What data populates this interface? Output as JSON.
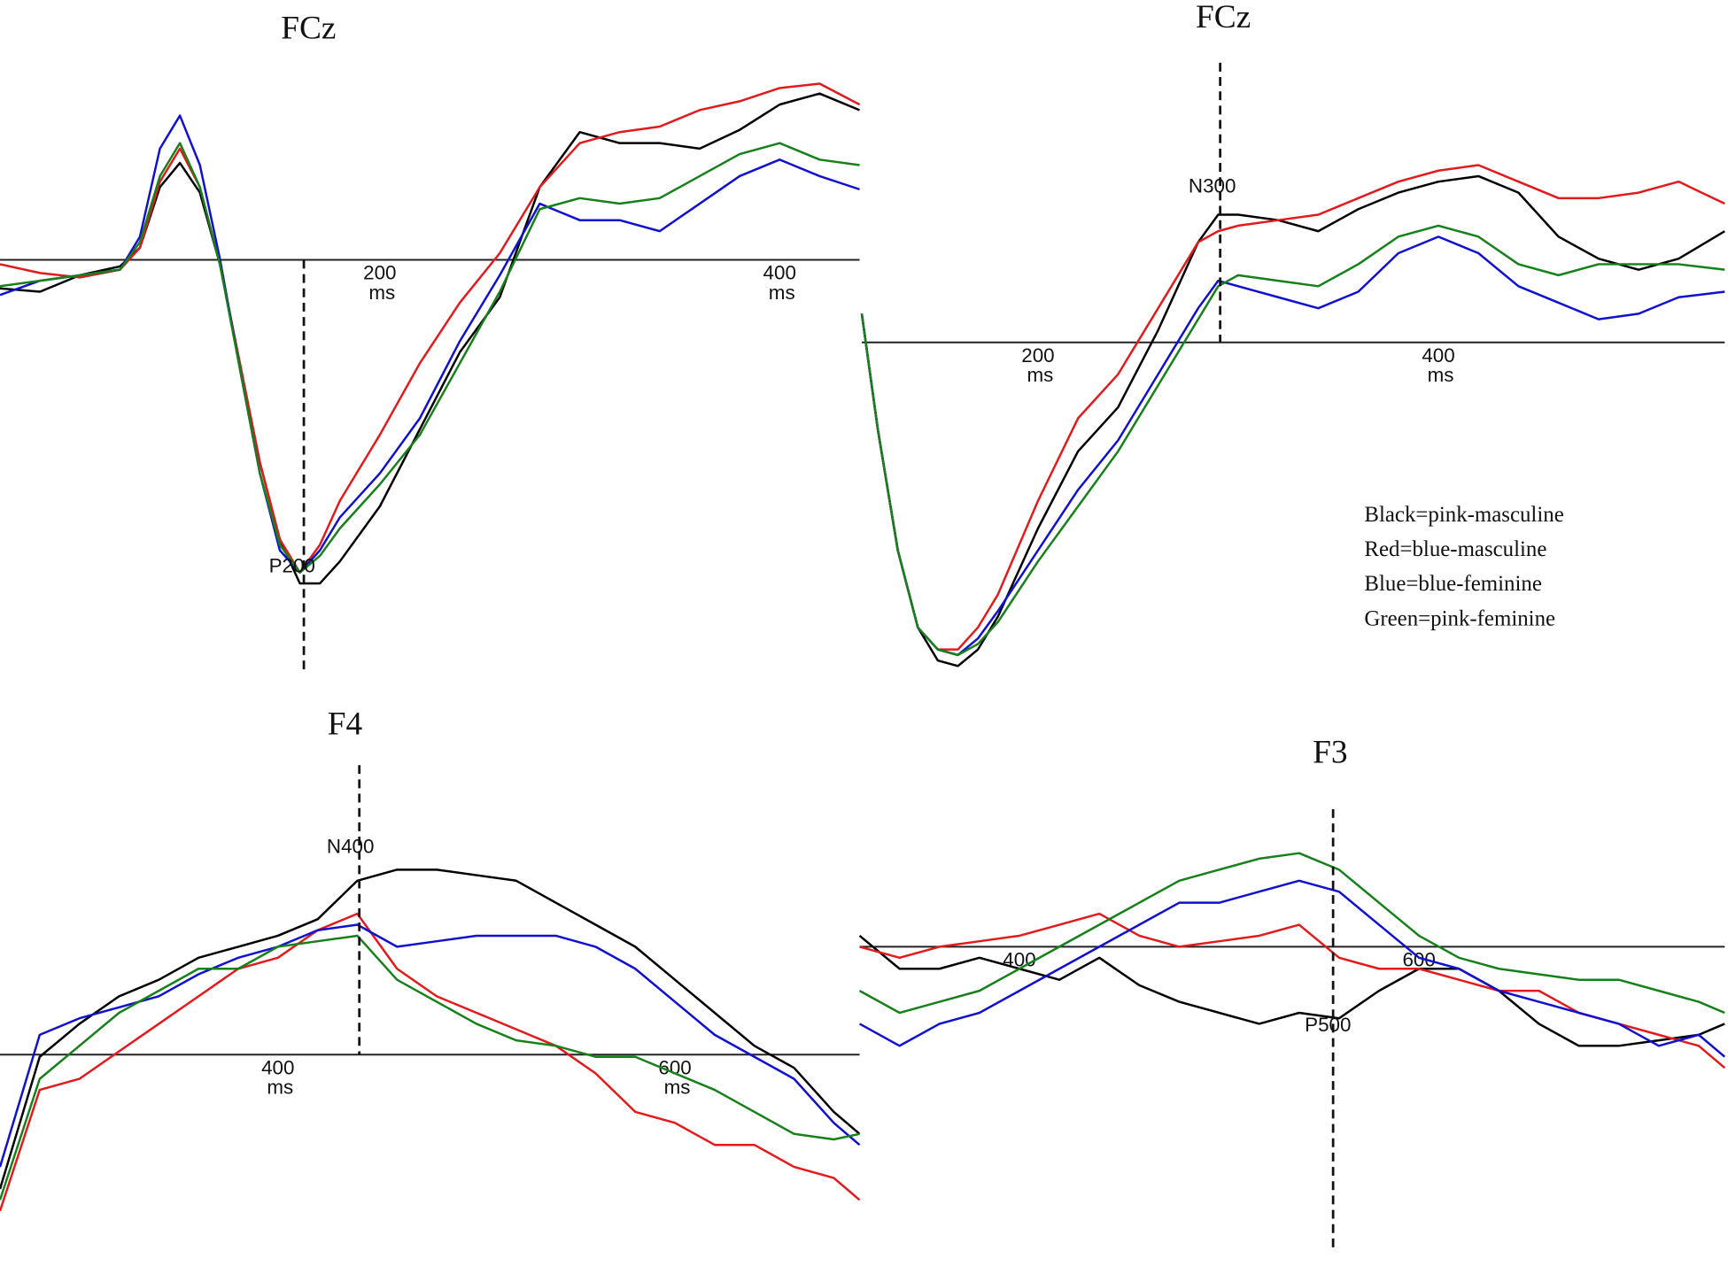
{
  "chart_data": [
    {
      "type": "line",
      "title": "FCz",
      "x_unit": "ms",
      "x": [
        10,
        30,
        50,
        70,
        80,
        90,
        100,
        110,
        120,
        130,
        140,
        150,
        160,
        170,
        180,
        200,
        220,
        240,
        260,
        280,
        300,
        320,
        340,
        360,
        380,
        400,
        420,
        440
      ],
      "xlim": [
        10,
        440
      ],
      "xticks": [
        200,
        400
      ],
      "ylim": [
        -7.5,
        3.5
      ],
      "marker": {
        "x": 162,
        "label": "P200"
      },
      "series": [
        {
          "color": "#000000",
          "values": [
            -0.52,
            -0.58,
            -0.28,
            -0.12,
            0.22,
            1.32,
            1.76,
            1.22,
            -0.08,
            -1.88,
            -3.68,
            -5.08,
            -5.88,
            -5.88,
            -5.48,
            -4.48,
            -3.08,
            -1.68,
            -0.68,
            1.32,
            2.32,
            2.12,
            2.12,
            2.02,
            2.36,
            2.82,
            3.02,
            2.72
          ]
        },
        {
          "color": "#e31a1c",
          "values": [
            -0.08,
            -0.24,
            -0.32,
            -0.18,
            0.22,
            1.42,
            2.02,
            1.32,
            -0.08,
            -1.88,
            -3.68,
            -5.08,
            -5.68,
            -5.18,
            -4.38,
            -3.18,
            -1.88,
            -0.78,
            0.12,
            1.32,
            2.12,
            2.32,
            2.42,
            2.72,
            2.88,
            3.12,
            3.2,
            2.82
          ]
        },
        {
          "color": "#1010d0",
          "values": [
            -0.64,
            -0.38,
            -0.28,
            -0.18,
            0.42,
            2.02,
            2.62,
            1.72,
            0.02,
            -1.98,
            -3.88,
            -5.28,
            -5.68,
            -5.28,
            -4.68,
            -3.88,
            -2.88,
            -1.48,
            -0.28,
            1.02,
            0.72,
            0.72,
            0.52,
            1.02,
            1.52,
            1.82,
            1.52,
            1.28
          ]
        },
        {
          "color": "#16801a",
          "values": [
            -0.48,
            -0.38,
            -0.28,
            -0.18,
            0.32,
            1.52,
            2.12,
            1.32,
            -0.08,
            -1.98,
            -3.88,
            -5.18,
            -5.68,
            -5.38,
            -4.88,
            -4.08,
            -3.18,
            -1.88,
            -0.58,
            0.92,
            1.12,
            1.02,
            1.12,
            1.52,
            1.92,
            2.12,
            1.82,
            1.72
          ]
        }
      ]
    },
    {
      "type": "line",
      "title": "FCz",
      "x_unit": "ms",
      "x": [
        112,
        120,
        130,
        140,
        150,
        160,
        170,
        180,
        200,
        220,
        240,
        260,
        280,
        290,
        300,
        320,
        340,
        360,
        380,
        400,
        420,
        440,
        460,
        480,
        500,
        520,
        543
      ],
      "xlim": [
        112,
        543
      ],
      "xticks": [
        200,
        400
      ],
      "ylim": [
        -6.1,
        5.0
      ],
      "marker": {
        "x": 291,
        "label": "N300"
      },
      "series": [
        {
          "name": "Black=pink-masculine",
          "color": "#000000",
          "values": [
            0.52,
            -1.58,
            -3.78,
            -5.18,
            -5.78,
            -5.88,
            -5.58,
            -4.98,
            -3.38,
            -1.98,
            -1.18,
            0.22,
            1.82,
            2.32,
            2.32,
            2.22,
            2.02,
            2.42,
            2.72,
            2.92,
            3.02,
            2.72,
            1.92,
            1.52,
            1.32,
            1.52,
            2.02
          ]
        },
        {
          "name": "Red=blue-masculine",
          "color": "#e31a1c",
          "values": [
            0.52,
            -1.58,
            -3.78,
            -5.18,
            -5.58,
            -5.58,
            -5.18,
            -4.58,
            -2.88,
            -1.38,
            -0.58,
            0.62,
            1.82,
            2.02,
            2.12,
            2.22,
            2.32,
            2.62,
            2.92,
            3.12,
            3.22,
            2.92,
            2.62,
            2.62,
            2.72,
            2.92,
            2.52
          ]
        },
        {
          "name": "Blue=blue-feminine",
          "color": "#1010d0",
          "values": [
            0.52,
            -1.58,
            -3.78,
            -5.18,
            -5.58,
            -5.68,
            -5.38,
            -4.88,
            -3.78,
            -2.68,
            -1.78,
            -0.58,
            0.62,
            1.12,
            1.02,
            0.82,
            0.62,
            0.92,
            1.62,
            1.92,
            1.62,
            1.02,
            0.72,
            0.42,
            0.52,
            0.82,
            0.92
          ]
        },
        {
          "name": "Green=pink-feminine",
          "color": "#16801a",
          "values": [
            0.52,
            -1.58,
            -3.78,
            -5.18,
            -5.58,
            -5.68,
            -5.48,
            -5.08,
            -3.98,
            -2.98,
            -1.98,
            -0.78,
            0.42,
            1.02,
            1.22,
            1.12,
            1.02,
            1.42,
            1.92,
            2.12,
            1.92,
            1.42,
            1.22,
            1.42,
            1.42,
            1.42,
            1.32
          ]
        }
      ]
    },
    {
      "type": "line",
      "title": "F4",
      "x_unit": "ms",
      "x": [
        260,
        280,
        300,
        320,
        340,
        360,
        380,
        400,
        420,
        440,
        460,
        480,
        500,
        520,
        540,
        560,
        580,
        600,
        620,
        640,
        660,
        680,
        693
      ],
      "xlim": [
        260,
        693
      ],
      "xticks": [
        400,
        600
      ],
      "ylim": [
        -3.6,
        5.4
      ],
      "marker": {
        "x": 441,
        "label": "N400"
      },
      "series": [
        {
          "color": "#000000",
          "values": [
            -2.44,
            -0.04,
            0.56,
            1.06,
            1.36,
            1.76,
            1.96,
            2.16,
            2.46,
            3.16,
            3.36,
            3.36,
            3.26,
            3.16,
            2.76,
            2.36,
            1.96,
            1.36,
            0.76,
            0.16,
            -0.24,
            -1.04,
            -1.44
          ]
        },
        {
          "color": "#e31a1c",
          "values": [
            -2.84,
            -0.64,
            -0.44,
            0.06,
            0.56,
            1.06,
            1.56,
            1.76,
            2.26,
            2.56,
            1.56,
            1.06,
            0.76,
            0.46,
            0.16,
            -0.34,
            -1.04,
            -1.24,
            -1.64,
            -1.64,
            -2.04,
            -2.24,
            -2.64
          ]
        },
        {
          "color": "#1010d0",
          "values": [
            -2.04,
            0.36,
            0.66,
            0.86,
            1.06,
            1.46,
            1.76,
            1.96,
            2.26,
            2.36,
            1.96,
            2.06,
            2.16,
            2.16,
            2.16,
            1.96,
            1.56,
            0.96,
            0.36,
            -0.04,
            -0.44,
            -1.24,
            -1.64
          ]
        },
        {
          "color": "#16801a",
          "values": [
            -2.64,
            -0.44,
            0.16,
            0.76,
            1.16,
            1.56,
            1.56,
            1.96,
            2.06,
            2.16,
            1.36,
            0.96,
            0.56,
            0.26,
            0.16,
            -0.04,
            -0.04,
            -0.34,
            -0.64,
            -1.04,
            -1.44,
            -1.54,
            -1.44
          ]
        }
      ]
    },
    {
      "type": "line",
      "title": "F3",
      "x": [
        320,
        340,
        360,
        380,
        400,
        420,
        440,
        460,
        480,
        500,
        520,
        540,
        560,
        580,
        600,
        620,
        640,
        660,
        680,
        700,
        720,
        740,
        753
      ],
      "xlim": [
        320,
        753
      ],
      "xticks": [
        400,
        600
      ],
      "ylim": [
        -5.6,
        3.4
      ],
      "marker": {
        "x": 557,
        "label": "P500"
      },
      "series": [
        {
          "color": "#000000",
          "values": [
            0.2,
            -0.4,
            -0.4,
            -0.2,
            -0.4,
            -0.6,
            -0.2,
            -0.7,
            -1.0,
            -1.2,
            -1.4,
            -1.2,
            -1.3,
            -0.8,
            -0.4,
            -0.4,
            -0.8,
            -1.4,
            -1.8,
            -1.8,
            -1.7,
            -1.6,
            -1.4
          ]
        },
        {
          "color": "#e31a1c",
          "values": [
            0,
            -0.2,
            0,
            0.1,
            0.2,
            0.4,
            0.6,
            0.2,
            0,
            0.1,
            0.2,
            0.4,
            -0.2,
            -0.4,
            -0.4,
            -0.6,
            -0.8,
            -0.8,
            -1.2,
            -1.4,
            -1.6,
            -1.8,
            -2.2
          ]
        },
        {
          "color": "#1010d0",
          "values": [
            -1.4,
            -1.8,
            -1.4,
            -1.2,
            -0.8,
            -0.4,
            0,
            0.4,
            0.8,
            0.8,
            1.0,
            1.2,
            1.0,
            0.4,
            -0.2,
            -0.4,
            -0.8,
            -1.0,
            -1.2,
            -1.4,
            -1.8,
            -1.6,
            -2.0
          ]
        },
        {
          "color": "#16801a",
          "values": [
            -0.8,
            -1.2,
            -1.0,
            -0.8,
            -0.4,
            0,
            0.4,
            0.8,
            1.2,
            1.4,
            1.6,
            1.7,
            1.4,
            0.8,
            0.2,
            -0.2,
            -0.4,
            -0.5,
            -0.6,
            -0.6,
            -0.8,
            -1.0,
            -1.2
          ]
        }
      ]
    }
  ]
}
